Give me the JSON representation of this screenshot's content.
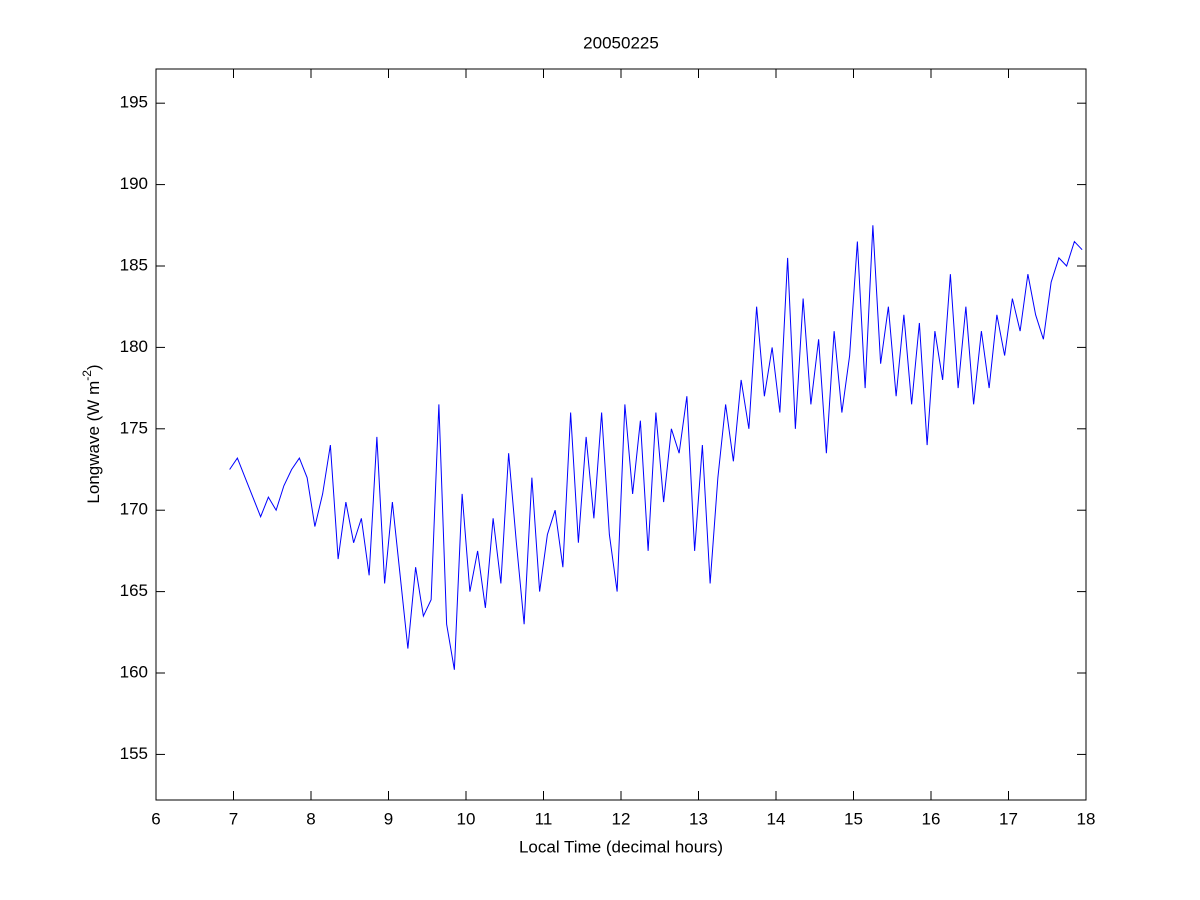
{
  "chart_data": {
    "type": "line",
    "title": "20050225",
    "x_label": "Local Time (decimal hours)",
    "y_label": {
      "text": "Longwave (W m",
      "superscript": "-2",
      "close": ")"
    },
    "x": [
      6.95,
      7.05,
      7.15,
      7.25,
      7.35,
      7.45,
      7.55,
      7.65,
      7.75,
      7.85,
      7.95,
      8.05,
      8.15,
      8.25,
      8.35,
      8.45,
      8.55,
      8.65,
      8.75,
      8.85,
      8.95,
      9.05,
      9.15,
      9.25,
      9.35,
      9.45,
      9.55,
      9.65,
      9.75,
      9.85,
      9.95,
      10.05,
      10.15,
      10.25,
      10.35,
      10.45,
      10.55,
      10.65,
      10.75,
      10.85,
      10.95,
      11.05,
      11.15,
      11.25,
      11.35,
      11.45,
      11.55,
      11.65,
      11.75,
      11.85,
      11.95,
      12.05,
      12.15,
      12.25,
      12.35,
      12.45,
      12.55,
      12.65,
      12.75,
      12.85,
      12.95,
      13.05,
      13.15,
      13.25,
      13.35,
      13.45,
      13.55,
      13.65,
      13.75,
      13.85,
      13.95,
      14.05,
      14.15,
      14.25,
      14.35,
      14.45,
      14.55,
      14.65,
      14.75,
      14.85,
      14.95,
      15.05,
      15.15,
      15.25,
      15.35,
      15.45,
      15.55,
      15.65,
      15.75,
      15.85,
      15.95,
      16.05,
      16.15,
      16.25,
      16.35,
      16.45,
      16.55,
      16.65,
      16.75,
      16.85,
      16.95,
      17.05,
      17.15,
      17.25,
      17.35,
      17.45,
      17.55,
      17.65,
      17.75,
      17.85,
      17.95
    ],
    "series": [
      {
        "color": "#0000ff",
        "values": [
          172.5,
          173.2,
          172.0,
          170.8,
          169.6,
          170.8,
          170.0,
          171.5,
          172.5,
          173.2,
          172.0,
          169.0,
          171.0,
          174.0,
          167.0,
          170.5,
          168.0,
          169.5,
          166.0,
          174.5,
          165.5,
          170.5,
          166.0,
          161.5,
          166.5,
          163.5,
          164.5,
          176.5,
          163.0,
          160.2,
          171.0,
          165.0,
          167.5,
          164.0,
          169.5,
          165.5,
          173.5,
          168.0,
          163.0,
          172.0,
          165.0,
          168.5,
          170.0,
          166.5,
          176.0,
          168.0,
          174.5,
          169.5,
          176.0,
          168.5,
          165.0,
          176.5,
          171.0,
          175.5,
          167.5,
          176.0,
          170.5,
          175.0,
          173.5,
          177.0,
          167.5,
          174.0,
          165.5,
          172.0,
          176.5,
          173.0,
          178.0,
          175.0,
          182.5,
          177.0,
          180.0,
          176.0,
          185.5,
          175.0,
          183.0,
          176.5,
          180.5,
          173.5,
          181.0,
          176.0,
          179.5,
          186.5,
          177.5,
          187.5,
          179.0,
          182.5,
          177.0,
          182.0,
          176.5,
          181.5,
          174.0,
          181.0,
          178.0,
          184.5,
          177.5,
          182.5,
          176.5,
          181.0,
          177.5,
          182.0,
          179.5,
          183.0,
          181.0,
          184.5,
          182.0,
          180.5,
          184.0,
          185.5,
          185.0,
          186.5,
          186.0
        ]
      }
    ],
    "xlim": [
      6,
      18
    ],
    "xticks": [
      6,
      7,
      8,
      9,
      10,
      11,
      12,
      13,
      14,
      15,
      16,
      17,
      18
    ],
    "ylim": [
      152.2,
      197.1
    ],
    "yticks": [
      155,
      160,
      165,
      170,
      175,
      180,
      185,
      190,
      195
    ]
  }
}
